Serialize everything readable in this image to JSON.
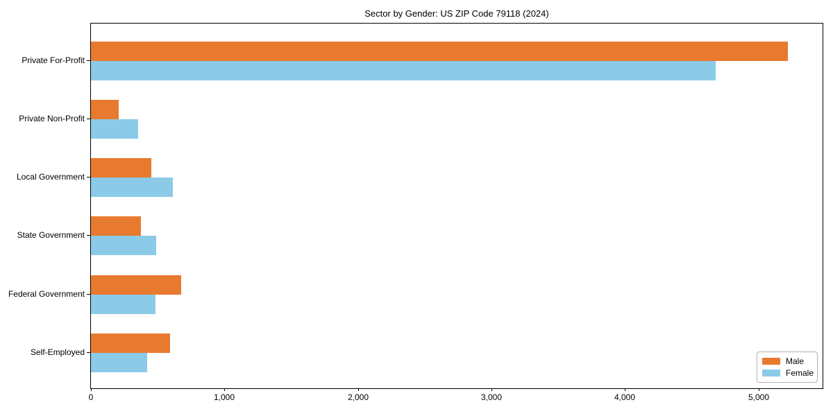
{
  "chart_data": {
    "type": "bar",
    "orientation": "horizontal",
    "title": "Sector by Gender: US ZIP Code 79118 (2024)",
    "categories": [
      "Private For-Profit",
      "Private Non-Profit",
      "Local Government",
      "State Government",
      "Federal Government",
      "Self-Employed"
    ],
    "series": [
      {
        "name": "Male",
        "color": "#e87a30",
        "values": [
          5220,
          210,
          450,
          375,
          675,
          595
        ]
      },
      {
        "name": "Female",
        "color": "#8bcbe8",
        "values": [
          4680,
          355,
          615,
          490,
          485,
          420
        ]
      }
    ],
    "xlabel": "",
    "ylabel": "",
    "xlim": [
      0,
      5481
    ],
    "x_ticks": [
      0,
      1000,
      2000,
      3000,
      4000,
      5000
    ],
    "x_tick_labels": [
      "0",
      "1,000",
      "2,000",
      "3,000",
      "4,000",
      "5,000"
    ],
    "grid": false,
    "legend": {
      "position": "lower right",
      "entries": [
        "Male",
        "Female"
      ]
    }
  },
  "colors": {
    "male": "#e87a30",
    "female": "#8bcbe8",
    "spine": "#000000",
    "legend_border": "#b0b0b0",
    "background": "#ffffff",
    "text": "#000000"
  }
}
